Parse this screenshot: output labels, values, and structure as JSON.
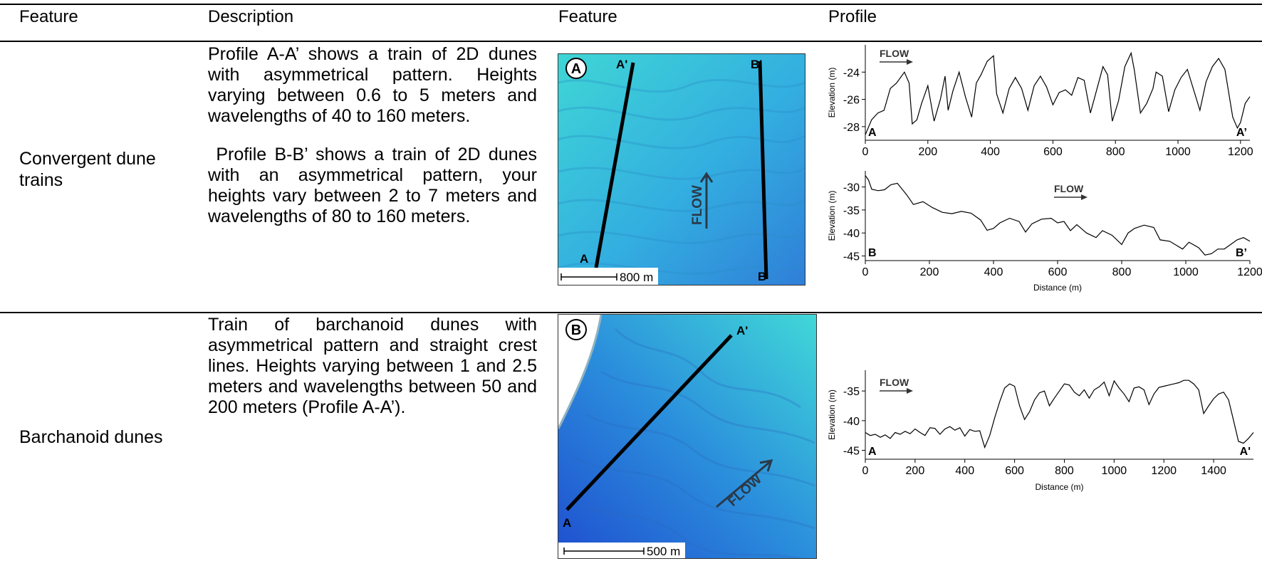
{
  "headers": [
    "Feature",
    "Description",
    "Feature",
    "Profile"
  ],
  "rows": [
    {
      "feature": "Convergent dune trains",
      "description": [
        "Profile A-A’ shows a train of 2D dunes with asymmetrical pattern. Heights varying between 0.6 to 5 meters and wavelengths of 40 to 160 meters.",
        " Profile B-B’ shows a train of 2D dunes with an asymmetrical pattern, your heights vary between 2 to 7 meters and wavelengths of 80 to 160 meters."
      ],
      "map": {
        "panel_label": "A",
        "line1_start": "A",
        "line1_end": "A'",
        "line2_start": "B",
        "line2_end": "B'",
        "flow_label": "FLOW",
        "scale_label": "800 m",
        "colors": {
          "deep": "#2f7fd8",
          "shallow": "#3fd6d6"
        }
      }
    },
    {
      "feature": "Barchanoid dunes",
      "description": [
        "Train of barchanoid dunes with asymmetrical pattern and straight crest lines. Heights varying between 1 and 2.5 meters and wavelengths between 50 and 200 meters (Profile A-A’)."
      ],
      "map": {
        "panel_label": "B",
        "line1_start": "A",
        "line1_end": "A'",
        "flow_label": "FLOW",
        "scale_label": "500 m",
        "colors": {
          "deep": "#1f4fd0",
          "shallow": "#40d8d8"
        }
      }
    }
  ],
  "chart_data": [
    {
      "type": "line",
      "title": "",
      "xlabel": "",
      "ylabel": "Elevation (m)",
      "xlim": [
        0,
        1230
      ],
      "ylim": [
        -29,
        -22
      ],
      "xticks": [
        0,
        200,
        400,
        600,
        800,
        1000,
        1200
      ],
      "yticks": [
        -24,
        -26,
        -28
      ],
      "annotations": {
        "flow": "FLOW",
        "start": "A",
        "end": "A’"
      },
      "series": [
        {
          "x": [
            0,
            20,
            40,
            60,
            80,
            100,
            125,
            140,
            150,
            165,
            180,
            200,
            220,
            240,
            255,
            265,
            280,
            300,
            320,
            340,
            355,
            370,
            390,
            410,
            420,
            440,
            460,
            480,
            500,
            520,
            540,
            560,
            580,
            600,
            620,
            640,
            660,
            680,
            700,
            720,
            740,
            760,
            775,
            790,
            810,
            830,
            850,
            860,
            880,
            900,
            920,
            930,
            950,
            970,
            990,
            1010,
            1030,
            1050,
            1070,
            1090,
            1110,
            1130,
            1150,
            1160,
            1175,
            1190,
            1200,
            1215,
            1230
          ],
          "values": [
            -28.6,
            -27.5,
            -27.0,
            -26.8,
            -25.2,
            -24.8,
            -24.0,
            -24.8,
            -27.8,
            -27.5,
            -26.3,
            -25.0,
            -27.6,
            -26.0,
            -24.3,
            -26.8,
            -25.4,
            -24.0,
            -25.8,
            -27.3,
            -24.8,
            -24.2,
            -23.2,
            -22.8,
            -25.6,
            -27.0,
            -25.2,
            -24.4,
            -25.2,
            -26.8,
            -25.0,
            -24.3,
            -25.1,
            -26.4,
            -25.5,
            -25.3,
            -25.7,
            -24.4,
            -24.6,
            -27.0,
            -25.3,
            -23.6,
            -24.2,
            -27.6,
            -26.1,
            -23.6,
            -22.6,
            -23.8,
            -27.0,
            -26.3,
            -25.2,
            -24.0,
            -24.3,
            -26.9,
            -25.3,
            -24.4,
            -23.8,
            -25.3,
            -26.8,
            -24.7,
            -23.6,
            -23.0,
            -23.8,
            -25.2,
            -27.3,
            -28.1,
            -27.7,
            -26.3,
            -25.8
          ]
        }
      ]
    },
    {
      "type": "line",
      "title": "",
      "xlabel": "Distance (m)",
      "ylabel": "Elevation (m)",
      "xlim": [
        0,
        1200
      ],
      "ylim": [
        -46,
        -26.5
      ],
      "xticks": [
        0,
        200,
        400,
        600,
        800,
        1000,
        1200
      ],
      "yticks": [
        -30,
        -35,
        -40,
        -45
      ],
      "annotations": {
        "flow": "FLOW",
        "start": "B",
        "end": "B’"
      },
      "series": [
        {
          "x": [
            0,
            10,
            20,
            40,
            60,
            80,
            100,
            130,
            150,
            180,
            210,
            240,
            270,
            300,
            330,
            360,
            380,
            400,
            420,
            450,
            480,
            500,
            520,
            550,
            580,
            600,
            620,
            640,
            660,
            690,
            720,
            740,
            770,
            800,
            820,
            840,
            870,
            900,
            920,
            950,
            990,
            1010,
            1040,
            1060,
            1080,
            1100,
            1120,
            1140,
            1160,
            1180,
            1200
          ],
          "values": [
            -27.5,
            -28.5,
            -30.5,
            -30.8,
            -30.6,
            -29.5,
            -29.2,
            -31.8,
            -33.8,
            -33.2,
            -34.5,
            -35.5,
            -35.8,
            -35.3,
            -35.7,
            -37.2,
            -39.4,
            -39.0,
            -37.8,
            -36.8,
            -37.5,
            -39.8,
            -38.0,
            -37.0,
            -36.8,
            -37.8,
            -37.5,
            -39.5,
            -38.2,
            -40.0,
            -41.0,
            -39.5,
            -40.5,
            -42.5,
            -40.0,
            -39.0,
            -38.3,
            -38.8,
            -41.5,
            -41.8,
            -43.5,
            -42.0,
            -43.2,
            -44.8,
            -44.5,
            -43.5,
            -43.5,
            -42.5,
            -41.5,
            -41.0,
            -41.8
          ]
        }
      ]
    },
    {
      "type": "line",
      "title": "",
      "xlabel": "Distance (m)",
      "ylabel": "Elevation (m)",
      "xlim": [
        0,
        1560
      ],
      "ylim": [
        -46.5,
        -31.5
      ],
      "xticks": [
        0,
        200,
        400,
        600,
        800,
        1000,
        1200,
        1400
      ],
      "yticks": [
        -35,
        -40,
        -45
      ],
      "annotations": {
        "flow": "FLOW",
        "start": "A",
        "end": "A'"
      },
      "series": [
        {
          "x": [
            0,
            20,
            40,
            60,
            80,
            100,
            120,
            140,
            160,
            180,
            200,
            220,
            240,
            260,
            280,
            300,
            320,
            340,
            360,
            380,
            400,
            420,
            440,
            460,
            480,
            500,
            520,
            540,
            560,
            580,
            600,
            620,
            640,
            660,
            680,
            700,
            720,
            740,
            760,
            780,
            800,
            820,
            840,
            860,
            880,
            900,
            920,
            940,
            960,
            980,
            1000,
            1020,
            1040,
            1060,
            1080,
            1100,
            1120,
            1140,
            1160,
            1180,
            1200,
            1220,
            1240,
            1260,
            1280,
            1300,
            1320,
            1340,
            1360,
            1380,
            1400,
            1420,
            1440,
            1460,
            1480,
            1500,
            1520,
            1540,
            1560
          ],
          "values": [
            -42.0,
            -42.5,
            -42.3,
            -42.8,
            -42.4,
            -43.0,
            -42.0,
            -42.3,
            -41.8,
            -42.2,
            -41.4,
            -42.0,
            -42.5,
            -41.2,
            -41.3,
            -42.3,
            -41.4,
            -41.0,
            -41.6,
            -41.2,
            -42.6,
            -41.5,
            -41.8,
            -41.7,
            -44.5,
            -42.5,
            -39.5,
            -36.8,
            -34.5,
            -33.8,
            -34.2,
            -37.5,
            -39.8,
            -38.5,
            -36.5,
            -35.3,
            -35.0,
            -37.5,
            -36.2,
            -35.0,
            -33.8,
            -34.0,
            -35.2,
            -35.8,
            -34.8,
            -36.2,
            -34.8,
            -34.3,
            -33.5,
            -35.8,
            -33.3,
            -34.5,
            -35.5,
            -36.8,
            -34.5,
            -34.3,
            -34.8,
            -37.3,
            -35.5,
            -34.4,
            -34.2,
            -34.0,
            -33.8,
            -33.6,
            -33.2,
            -33.2,
            -33.8,
            -34.8,
            -38.8,
            -37.5,
            -36.3,
            -35.5,
            -35.2,
            -36.5,
            -40.0,
            -43.5,
            -43.8,
            -43.0,
            -42.0
          ]
        }
      ]
    }
  ]
}
